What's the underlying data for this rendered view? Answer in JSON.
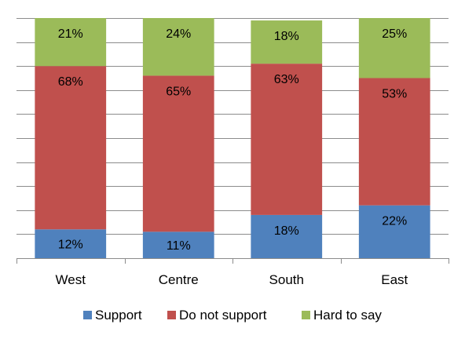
{
  "chart_data": {
    "type": "bar",
    "stacked": true,
    "categories": [
      "West",
      "Centre",
      "South",
      "East"
    ],
    "series": [
      {
        "name": "Support",
        "values": [
          12,
          11,
          18,
          22
        ],
        "labels": [
          "12%",
          "11%",
          "18%",
          "22%"
        ],
        "color": "#4f81bd"
      },
      {
        "name": "Do not support",
        "values": [
          68,
          65,
          63,
          53
        ],
        "labels": [
          "68%",
          "65%",
          "63%",
          "53%"
        ],
        "color": "#c0504d"
      },
      {
        "name": "Hard to say",
        "values": [
          21,
          24,
          18,
          25
        ],
        "labels": [
          "21%",
          "24%",
          "18%",
          "25%"
        ],
        "color": "#9bbb59"
      }
    ],
    "ylim": [
      0,
      100
    ],
    "grid": true,
    "legend_position": "bottom",
    "title": "",
    "xlabel": "",
    "ylabel": ""
  }
}
